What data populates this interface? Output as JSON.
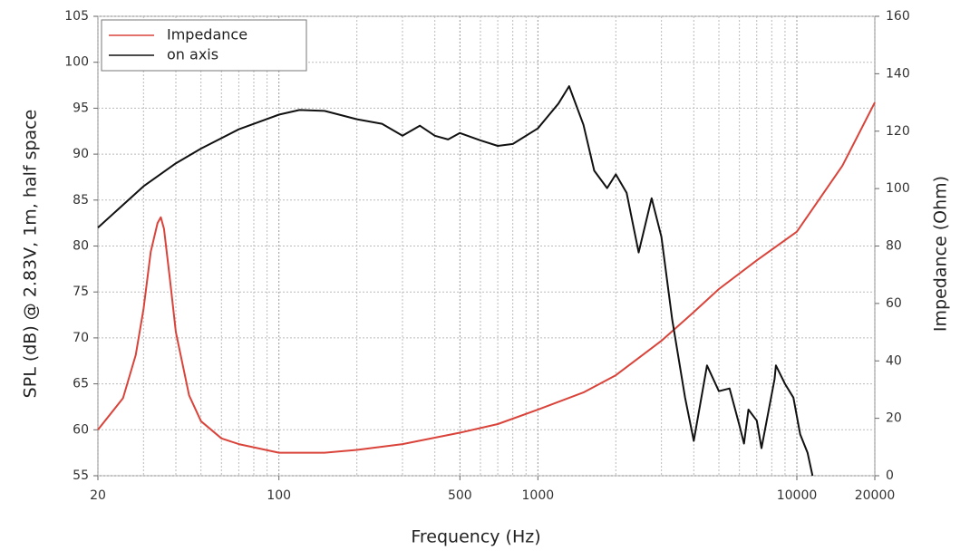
{
  "chart_data": {
    "type": "line",
    "x_label": "Frequency (Hz)",
    "y_label": "SPL (dB) @ 2.83V, 1m, half space",
    "y2_label": "Impedance (Ohm)",
    "x_scale": "log",
    "grid": true,
    "legend": "upper left",
    "xlim": [
      20,
      20000
    ],
    "xticks": [
      20,
      100,
      500,
      1000,
      10000,
      20000
    ],
    "xminorticks": [
      30,
      40,
      50,
      60,
      70,
      80,
      90,
      200,
      300,
      400,
      600,
      700,
      800,
      900,
      2000,
      3000,
      4000,
      5000,
      6000,
      7000,
      8000,
      9000
    ],
    "ylim": [
      55,
      105
    ],
    "yticks": [
      55,
      60,
      65,
      70,
      75,
      80,
      85,
      90,
      95,
      100,
      105
    ],
    "y2lim": [
      0,
      160
    ],
    "y2ticks": [
      0,
      20,
      40,
      60,
      80,
      100,
      120,
      140,
      160
    ],
    "series": [
      {
        "name": "Impedance",
        "color": "#d9433a",
        "axis": "y2",
        "x": [
          20,
          25,
          28,
          30,
          32,
          34,
          35,
          36,
          38,
          40,
          45,
          50,
          60,
          70,
          100,
          150,
          200,
          300,
          500,
          700,
          1000,
          1500,
          2000,
          3000,
          4000,
          5000,
          7000,
          10000,
          15000,
          20000
        ],
        "values": [
          16,
          27,
          42,
          58,
          78,
          88,
          90,
          86,
          68,
          50,
          28,
          19,
          13,
          11,
          8,
          8,
          9,
          11,
          15,
          18,
          23,
          29,
          35,
          47,
          57,
          65,
          75,
          85,
          108,
          130
        ]
      },
      {
        "name": "on axis",
        "color": "#111111",
        "axis": "y",
        "x": [
          20,
          30,
          40,
          50,
          70,
          100,
          120,
          150,
          200,
          250,
          300,
          350,
          400,
          450,
          500,
          600,
          700,
          800,
          1000,
          1200,
          1320,
          1500,
          1650,
          1850,
          2000,
          2200,
          2450,
          2750,
          3000,
          3300,
          3700,
          4000,
          4500,
          5000,
          5500,
          6000,
          6250,
          6500,
          7000,
          7300,
          8200,
          8300,
          9000,
          9700,
          10300,
          11000,
          11500
        ],
        "values": [
          82,
          86.5,
          89,
          90.6,
          92.7,
          94.3,
          94.8,
          94.7,
          93.8,
          93.3,
          92.0,
          93.1,
          92.0,
          91.6,
          92.3,
          91.5,
          90.9,
          91.1,
          92.8,
          95.5,
          97.4,
          93.2,
          88.2,
          86.3,
          87.8,
          85.8,
          79.3,
          85.2,
          81.0,
          72.0,
          63.5,
          58.8,
          67.0,
          64.2,
          64.5,
          60.5,
          58.5,
          62.2,
          61.0,
          58.0,
          65.5,
          67.0,
          65.0,
          63.5,
          59.5,
          57.5,
          55.0
        ]
      }
    ]
  }
}
